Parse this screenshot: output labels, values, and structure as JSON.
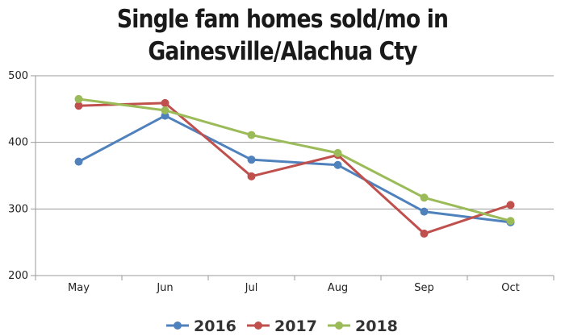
{
  "chart_data": {
    "type": "line",
    "title_lines": [
      "Single fam homes sold/mo in",
      "Gainesville/Alachua Cty"
    ],
    "categories": [
      "May",
      "Jun",
      "Jul",
      "Aug",
      "Sep",
      "Oct"
    ],
    "ylim": [
      200,
      500
    ],
    "yticks": [
      200,
      300,
      400,
      500
    ],
    "grid": true,
    "legend_position": "bottom",
    "series": [
      {
        "name": "2016",
        "color": "#4f81bd",
        "values": [
          371,
          440,
          374,
          366,
          296,
          280
        ]
      },
      {
        "name": "2017",
        "color": "#c0504d",
        "values": [
          455,
          459,
          349,
          381,
          263,
          306
        ]
      },
      {
        "name": "2018",
        "color": "#9bbb59",
        "values": [
          465,
          448,
          411,
          384,
          317,
          282
        ]
      }
    ]
  }
}
